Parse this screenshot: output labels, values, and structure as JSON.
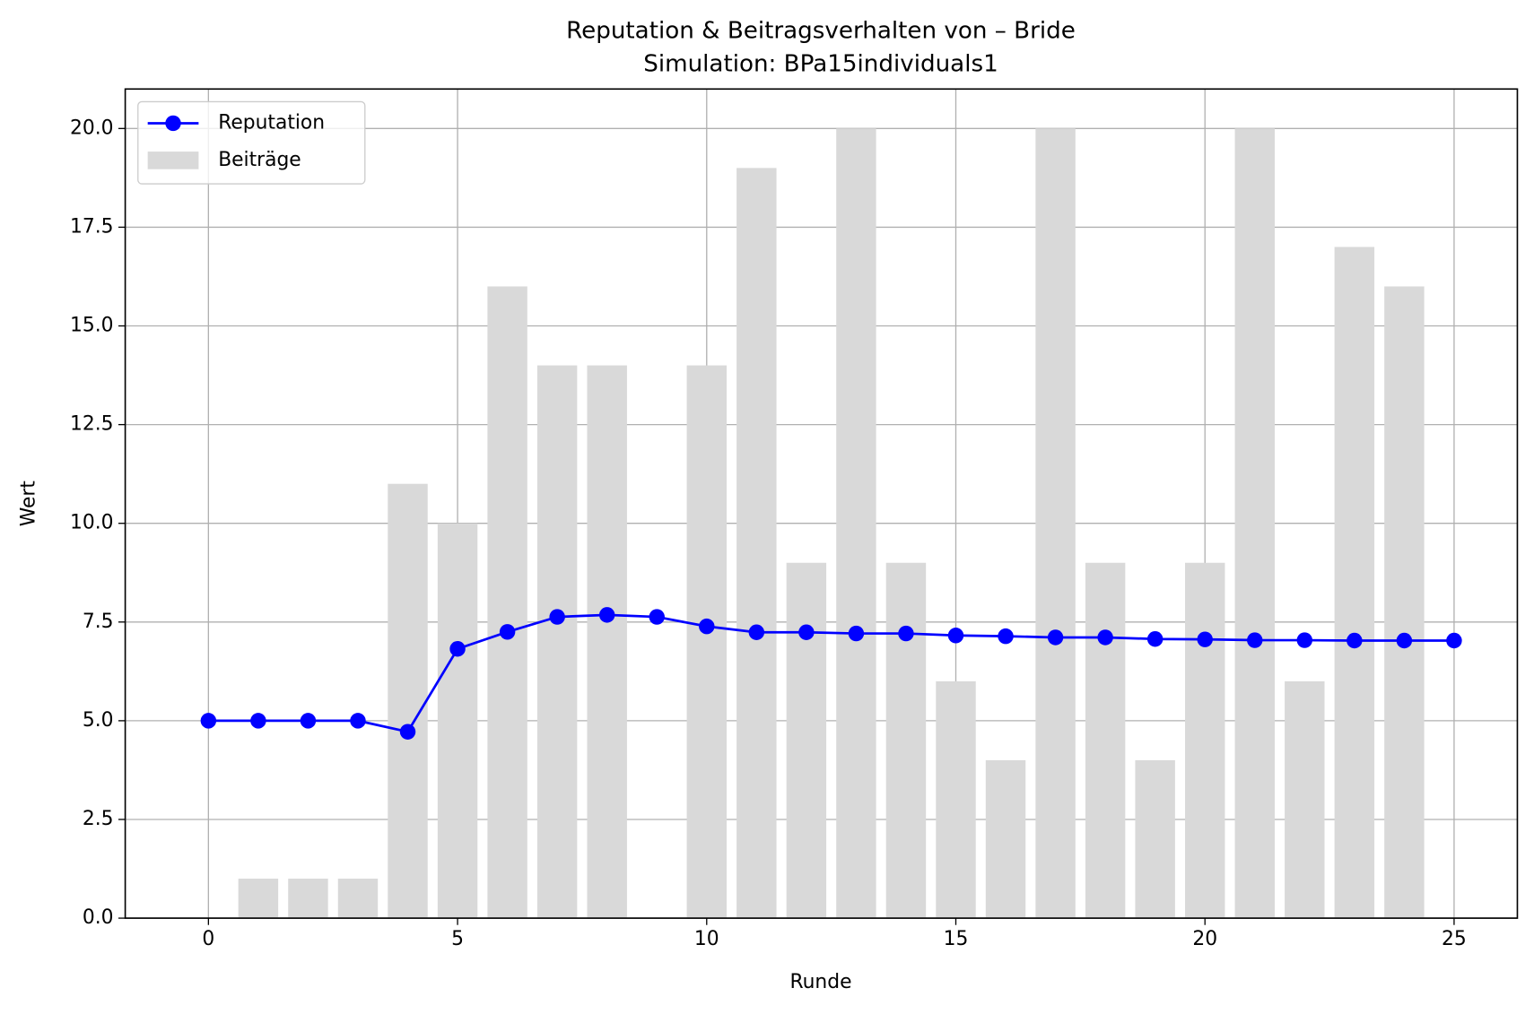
{
  "chart_data": {
    "type": "combo",
    "title": "Reputation & Beitragsverhalten von – Bride",
    "subtitle": "Simulation: BPa15individuals1",
    "x_label": "Runde",
    "y_label": "Wert",
    "xlim": [
      -1.67,
      26.27
    ],
    "ylim": [
      0,
      21
    ],
    "xticks": [
      0,
      5,
      10,
      15,
      20,
      25
    ],
    "yticks": [
      {
        "value": 0,
        "label": "0.0"
      },
      {
        "value": 2.5,
        "label": "2.5"
      },
      {
        "value": 5,
        "label": "5.0"
      },
      {
        "value": 7.5,
        "label": "7.5"
      },
      {
        "value": 10,
        "label": "10.0"
      },
      {
        "value": 12.5,
        "label": "12.5"
      },
      {
        "value": 15,
        "label": "15.0"
      },
      {
        "value": 17.5,
        "label": "17.5"
      },
      {
        "value": 20,
        "label": "20.0"
      }
    ],
    "grid": true,
    "legend": "upper left",
    "series": [
      {
        "name": "Reputation",
        "type": "line",
        "color": "#0000ff",
        "x": [
          0,
          1,
          2,
          3,
          4,
          5,
          6,
          7,
          8,
          9,
          10,
          11,
          12,
          13,
          14,
          15,
          16,
          17,
          18,
          19,
          20,
          21,
          22,
          23,
          24,
          25
        ],
        "values": [
          5,
          5,
          5,
          5,
          4.72,
          6.82,
          7.25,
          7.63,
          7.68,
          7.63,
          7.39,
          7.24,
          7.24,
          7.21,
          7.21,
          7.16,
          7.14,
          7.11,
          7.11,
          7.07,
          7.06,
          7.04,
          7.04,
          7.03,
          7.03,
          7.03
        ]
      },
      {
        "name": "Beiträge",
        "type": "bar",
        "color": "#d9d9d9",
        "x": [
          0,
          1,
          2,
          3,
          4,
          5,
          6,
          7,
          8,
          9,
          10,
          11,
          12,
          13,
          14,
          15,
          16,
          17,
          18,
          19,
          20,
          21,
          22,
          23,
          24
        ],
        "values": [
          0,
          1,
          1,
          1,
          11,
          10,
          16,
          14,
          14,
          0,
          14,
          19,
          9,
          20,
          9,
          6,
          4,
          20,
          9,
          4,
          9,
          20,
          6,
          17,
          16
        ]
      }
    ]
  }
}
